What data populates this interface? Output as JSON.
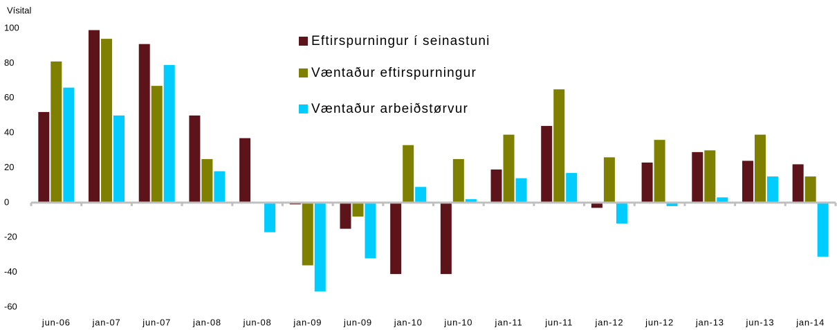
{
  "chart_data": {
    "type": "bar",
    "y_label": "Vísital",
    "categories": [
      "jun-06",
      "jan-07",
      "jun-07",
      "jan-08",
      "jun-08",
      "jan-09",
      "jun-09",
      "jan-10",
      "jun-10",
      "jan-11",
      "jun-11",
      "jan-12",
      "jun-12",
      "jan-13",
      "jun-13",
      "jan-14"
    ],
    "series": [
      {
        "name": "Eftirspurningur í seinastuni",
        "color": "#5c1319",
        "values": [
          52,
          99,
          91,
          50,
          37,
          -1,
          -15,
          -41,
          -41,
          19,
          44,
          -3,
          23,
          29,
          24,
          22
        ]
      },
      {
        "name": "Væntaður eftirspurningur",
        "color": "#808000",
        "values": [
          81,
          94,
          67,
          25,
          0,
          -36,
          -8,
          33,
          25,
          39,
          65,
          26,
          36,
          30,
          39,
          15
        ]
      },
      {
        "name": "Væntaður arbeiðstørvur",
        "color": "#00ccff",
        "values": [
          66,
          50,
          79,
          18,
          -17,
          -51,
          -32,
          9,
          2,
          14,
          17,
          -12,
          -2,
          3,
          15,
          -31
        ]
      }
    ],
    "ylim": [
      -60,
      100
    ],
    "yticks": [
      -60,
      -40,
      -20,
      0,
      20,
      40,
      60,
      80,
      100
    ],
    "grid": false,
    "legend": "top"
  }
}
